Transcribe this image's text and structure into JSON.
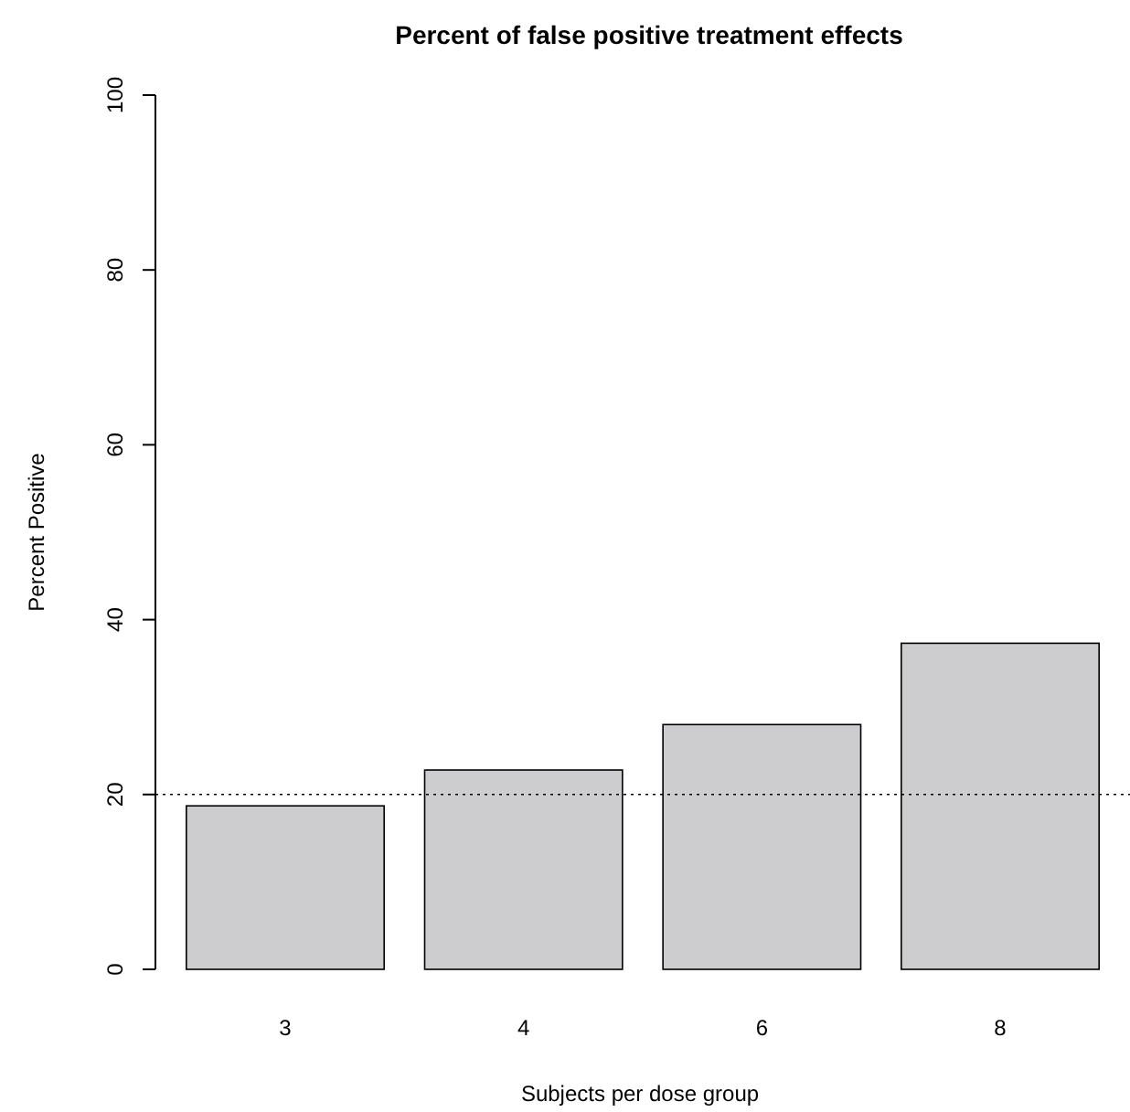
{
  "chart_data": {
    "type": "bar",
    "title": "Percent of false positive treatment effects",
    "xlabel": "Subjects per dose group",
    "ylabel": "Percent Positive",
    "categories": [
      "3",
      "4",
      "6",
      "8"
    ],
    "values": [
      18.7,
      22.8,
      28.0,
      37.3
    ],
    "color": "#cdcdd0",
    "ylim": [
      0,
      100
    ],
    "yticks": [
      0,
      20,
      40,
      60,
      80,
      100
    ],
    "ref_lines": [
      {
        "axis": "y",
        "value": 20,
        "line_style": "dotted",
        "color": "#000000"
      }
    ],
    "grid": false
  }
}
